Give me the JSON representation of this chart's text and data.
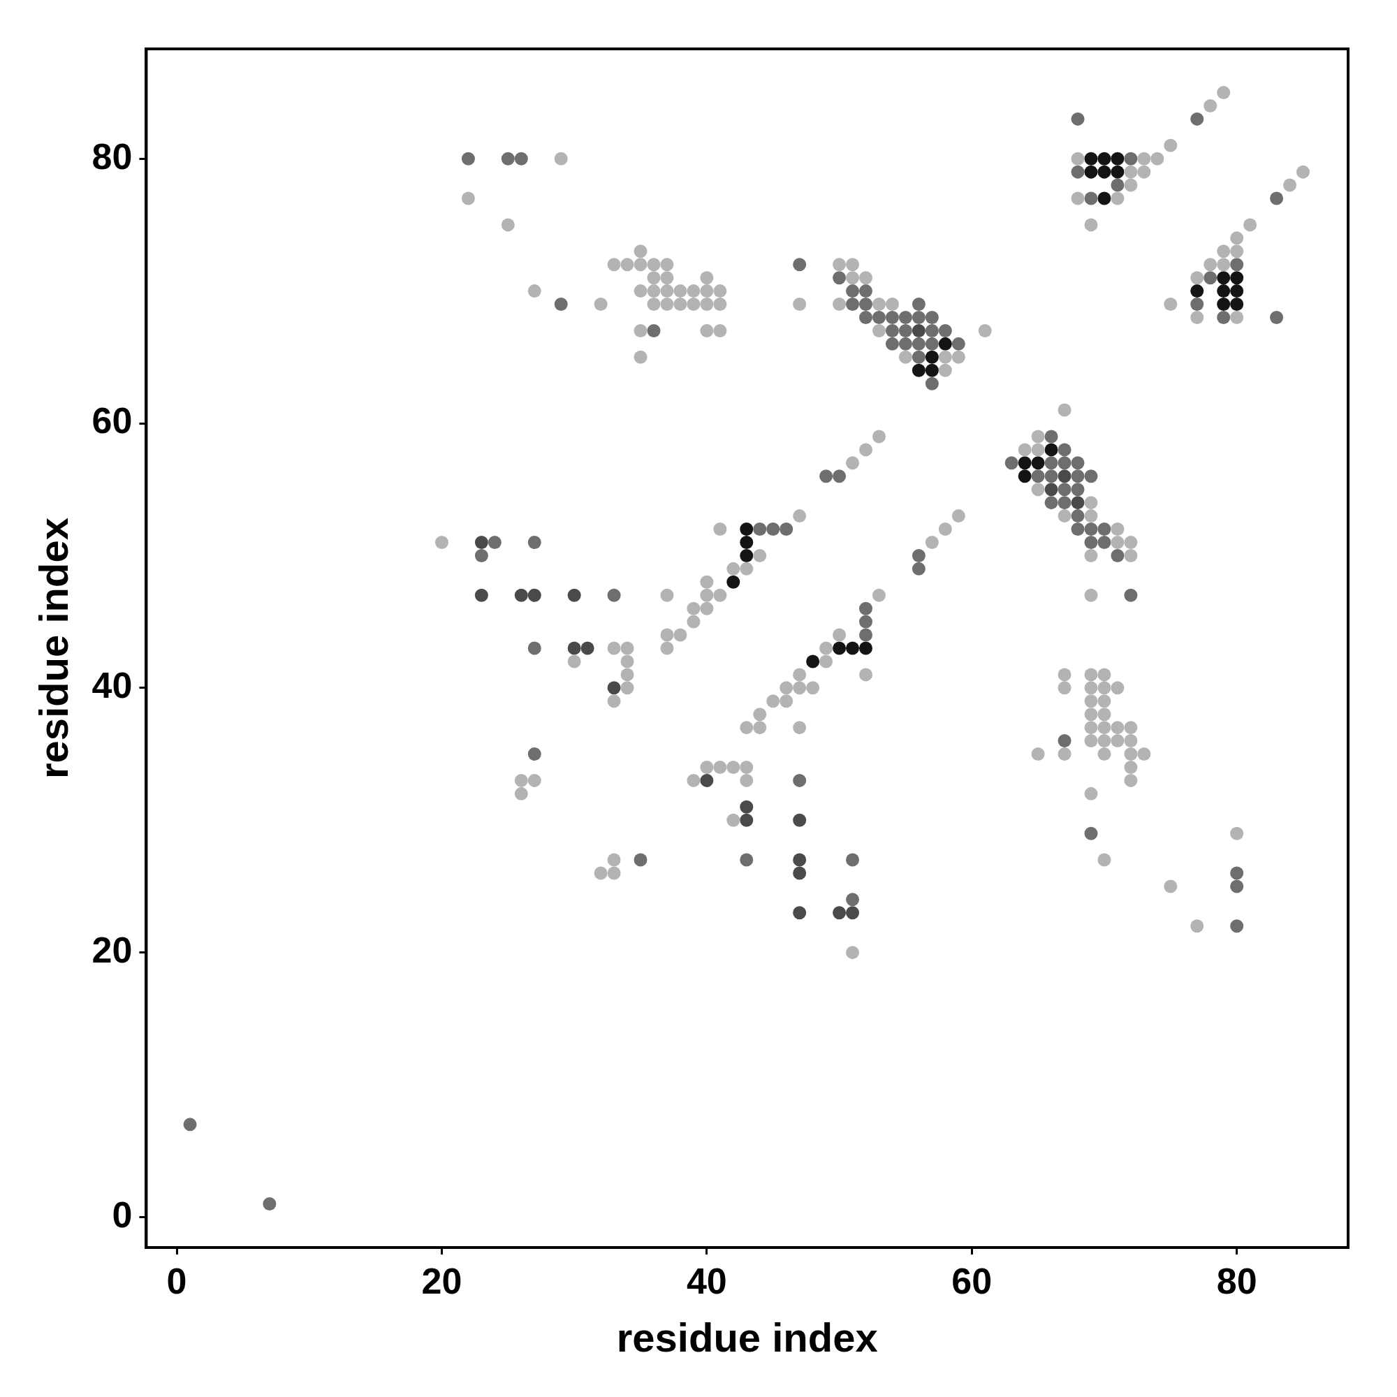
{
  "chart_data": {
    "type": "scatter",
    "xlabel": "residue index",
    "ylabel": "residue index",
    "xlim": [
      -2.3,
      88.4
    ],
    "ylim": [
      -2.3,
      88.3
    ],
    "xticks": [
      0,
      20,
      40,
      60,
      80
    ],
    "yticks": [
      0,
      20,
      40,
      60,
      80
    ],
    "grid": false,
    "legend": false,
    "marker": "circle",
    "series": [
      {
        "color": "#b3b3b3",
        "x": [
          29,
          22,
          25,
          35,
          33,
          34,
          35,
          36,
          37,
          50,
          51,
          36,
          37,
          40,
          51,
          52,
          27,
          35,
          36,
          37,
          38,
          39,
          40,
          41,
          32,
          36,
          37,
          38,
          39,
          40,
          41,
          47,
          50,
          53,
          54,
          35,
          40,
          41,
          53,
          61,
          35,
          55,
          58,
          59,
          58,
          79,
          78,
          75,
          68,
          73,
          74,
          72,
          73,
          72,
          68,
          71,
          69,
          84,
          85,
          81,
          80,
          79,
          80,
          78,
          79,
          77,
          75,
          77,
          80,
          67,
          53,
          65,
          64,
          65,
          52,
          51,
          65,
          69,
          67,
          69,
          59,
          71,
          58,
          71,
          72,
          57,
          69,
          72,
          53,
          69,
          47,
          41,
          44,
          42,
          43,
          40,
          37,
          40,
          41,
          39,
          40,
          39,
          37,
          38,
          37,
          20,
          33,
          34,
          30,
          34,
          34,
          34,
          50,
          49,
          49,
          47,
          52,
          46,
          47,
          48,
          33,
          45,
          46,
          44,
          43,
          44,
          47,
          26,
          27,
          26,
          40,
          41,
          42,
          43,
          39,
          43,
          42,
          33,
          32,
          33,
          51,
          67,
          69,
          70,
          67,
          69,
          70,
          71,
          69,
          70,
          69,
          70,
          69,
          70,
          71,
          72,
          69,
          70,
          71,
          72,
          65,
          67,
          70,
          72,
          73,
          72,
          72,
          69,
          80,
          70,
          75,
          77
        ],
        "values": [
          80,
          77,
          75,
          73,
          72,
          72,
          72,
          72,
          72,
          72,
          72,
          71,
          71,
          71,
          71,
          71,
          70,
          70,
          70,
          70,
          70,
          70,
          70,
          70,
          69,
          69,
          69,
          69,
          69,
          69,
          69,
          69,
          69,
          69,
          69,
          67,
          67,
          67,
          67,
          67,
          65,
          65,
          65,
          65,
          64,
          85,
          84,
          81,
          80,
          80,
          80,
          79,
          79,
          78,
          77,
          77,
          75,
          78,
          79,
          75,
          74,
          73,
          73,
          72,
          72,
          71,
          69,
          68,
          68,
          61,
          59,
          59,
          58,
          58,
          58,
          57,
          55,
          54,
          53,
          53,
          53,
          52,
          52,
          51,
          51,
          51,
          50,
          50,
          47,
          47,
          53,
          52,
          50,
          49,
          49,
          48,
          47,
          47,
          47,
          46,
          46,
          45,
          44,
          44,
          43,
          51,
          43,
          43,
          42,
          42,
          41,
          40,
          44,
          43,
          42,
          41,
          41,
          40,
          40,
          40,
          39,
          39,
          39,
          38,
          37,
          37,
          37,
          33,
          33,
          32,
          34,
          34,
          34,
          34,
          33,
          33,
          30,
          27,
          26,
          26,
          20,
          41,
          41,
          41,
          40,
          40,
          40,
          40,
          39,
          39,
          38,
          38,
          37,
          37,
          37,
          37,
          36,
          36,
          36,
          36,
          35,
          35,
          35,
          35,
          35,
          34,
          33,
          32,
          29,
          27,
          25,
          22
        ]
      },
      {
        "color": "#6e6e6e",
        "x": [
          22,
          25,
          26,
          47,
          50,
          51,
          52,
          29,
          51,
          52,
          36,
          52,
          53,
          54,
          55,
          56,
          57,
          56,
          54,
          55,
          57,
          58,
          54,
          55,
          56,
          57,
          59,
          56,
          57,
          68,
          77,
          72,
          68,
          71,
          69,
          83,
          80,
          78,
          77,
          79,
          83,
          66,
          67,
          63,
          66,
          67,
          68,
          65,
          66,
          68,
          69,
          67,
          68,
          66,
          67,
          68,
          68,
          69,
          70,
          69,
          70,
          71,
          56,
          56,
          72,
          49,
          50,
          44,
          45,
          46,
          24,
          27,
          23,
          33,
          27,
          52,
          52,
          52,
          27,
          47,
          35,
          43,
          51,
          51,
          67,
          69,
          80,
          80,
          80,
          1,
          7
        ],
        "values": [
          80,
          80,
          80,
          72,
          71,
          70,
          70,
          69,
          69,
          69,
          67,
          68,
          68,
          68,
          68,
          68,
          68,
          69,
          67,
          67,
          67,
          67,
          66,
          66,
          66,
          66,
          66,
          65,
          63,
          83,
          83,
          80,
          79,
          78,
          77,
          77,
          72,
          71,
          69,
          68,
          68,
          59,
          58,
          57,
          57,
          57,
          57,
          56,
          56,
          56,
          56,
          55,
          55,
          54,
          54,
          53,
          52,
          52,
          52,
          51,
          51,
          50,
          50,
          49,
          47,
          56,
          56,
          52,
          52,
          52,
          51,
          51,
          50,
          47,
          43,
          46,
          45,
          44,
          35,
          33,
          27,
          27,
          27,
          24,
          36,
          29,
          26,
          25,
          22,
          7,
          1
        ]
      },
      {
        "color": "#4a4a4a",
        "x": [
          56,
          66,
          67,
          68,
          23,
          23,
          26,
          27,
          30,
          30,
          31,
          33,
          40,
          43,
          43,
          47,
          47,
          47,
          47,
          50,
          51
        ],
        "values": [
          67,
          55,
          56,
          54,
          51,
          47,
          47,
          47,
          47,
          43,
          43,
          40,
          33,
          31,
          30,
          30,
          27,
          26,
          23,
          23,
          23
        ]
      },
      {
        "color": "#141414",
        "x": [
          58,
          57,
          56,
          57,
          69,
          70,
          71,
          69,
          70,
          71,
          70,
          79,
          80,
          77,
          79,
          80,
          79,
          80,
          66,
          64,
          65,
          64,
          43,
          43,
          43,
          42,
          50,
          51,
          52,
          48
        ],
        "values": [
          66,
          65,
          64,
          64,
          80,
          80,
          80,
          79,
          79,
          79,
          77,
          71,
          71,
          70,
          70,
          70,
          69,
          69,
          58,
          57,
          57,
          56,
          52,
          51,
          50,
          48,
          43,
          43,
          43,
          42
        ]
      }
    ]
  }
}
